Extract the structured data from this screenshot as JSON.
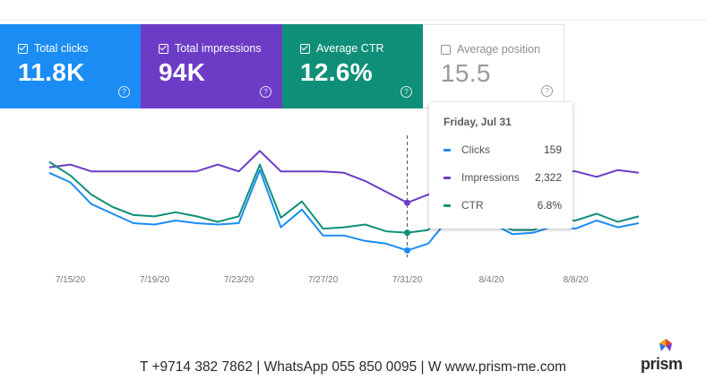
{
  "metrics": [
    {
      "label": "Total clicks",
      "value": "11.8K",
      "checked": true,
      "color": "#1a8cf4"
    },
    {
      "label": "Total impressions",
      "value": "94K",
      "checked": true,
      "color": "#6c3cc6"
    },
    {
      "label": "Average CTR",
      "value": "12.6%",
      "checked": true,
      "color": "#0f8f78"
    },
    {
      "label": "Average position",
      "value": "15.5",
      "checked": false,
      "color": "#9a9a9a"
    }
  ],
  "help_glyph": "?",
  "tooltip": {
    "date": "Friday, Jul 31",
    "rows": [
      {
        "label": "Clicks",
        "value": "159",
        "color": "#1a8cf4"
      },
      {
        "label": "Impressions",
        "value": "2,322",
        "color": "#6c3cc6"
      },
      {
        "label": "CTR",
        "value": "6.8%",
        "color": "#0f8f78"
      }
    ]
  },
  "chart_data": {
    "type": "line",
    "x_ticks": [
      "7/15/20",
      "7/19/20",
      "7/23/20",
      "7/27/20",
      "7/31/20",
      "8/4/20",
      "8/8/20"
    ],
    "x": [
      "7/14",
      "7/15",
      "7/16",
      "7/17",
      "7/18",
      "7/19",
      "7/20",
      "7/21",
      "7/22",
      "7/23",
      "7/24",
      "7/25",
      "7/26",
      "7/27",
      "7/28",
      "7/29",
      "7/30",
      "7/31",
      "8/1",
      "8/2",
      "8/3",
      "8/4",
      "8/5",
      "8/6",
      "8/7",
      "8/8",
      "8/9",
      "8/10",
      "8/11"
    ],
    "series": [
      {
        "name": "Clicks",
        "color": "#1a8cf4",
        "values": [
          0.62,
          0.55,
          0.39,
          0.32,
          0.25,
          0.24,
          0.27,
          0.25,
          0.24,
          0.25,
          0.64,
          0.22,
          0.35,
          0.16,
          0.16,
          0.12,
          0.1,
          0.05,
          0.1,
          0.29,
          0.27,
          0.25,
          0.17,
          0.18,
          0.23,
          0.21,
          0.27,
          0.22,
          0.25
        ]
      },
      {
        "name": "Impressions",
        "color": "#6c3cc6",
        "values": [
          0.66,
          0.68,
          0.63,
          0.63,
          0.63,
          0.63,
          0.63,
          0.63,
          0.68,
          0.63,
          0.78,
          0.63,
          0.63,
          0.63,
          0.62,
          0.56,
          0.48,
          0.4,
          0.46,
          0.5,
          0.58,
          0.55,
          0.6,
          0.62,
          0.64,
          0.63,
          0.59,
          0.64,
          0.62
        ]
      },
      {
        "name": "CTR",
        "color": "#0f8f78",
        "values": [
          0.7,
          0.6,
          0.46,
          0.37,
          0.31,
          0.3,
          0.33,
          0.3,
          0.26,
          0.3,
          0.68,
          0.29,
          0.41,
          0.21,
          0.22,
          0.24,
          0.19,
          0.18,
          0.2,
          0.36,
          0.3,
          0.26,
          0.2,
          0.2,
          0.27,
          0.27,
          0.32,
          0.26,
          0.3
        ]
      }
    ],
    "highlight_x": "7/31",
    "ylim": [
      0,
      1
    ],
    "grid": false,
    "legend": "none"
  },
  "footer": {
    "contact": "T +9714 382 7862 |  WhatsApp 055 850 0095   | W www.prism-me.com",
    "logo_text": "prism"
  }
}
